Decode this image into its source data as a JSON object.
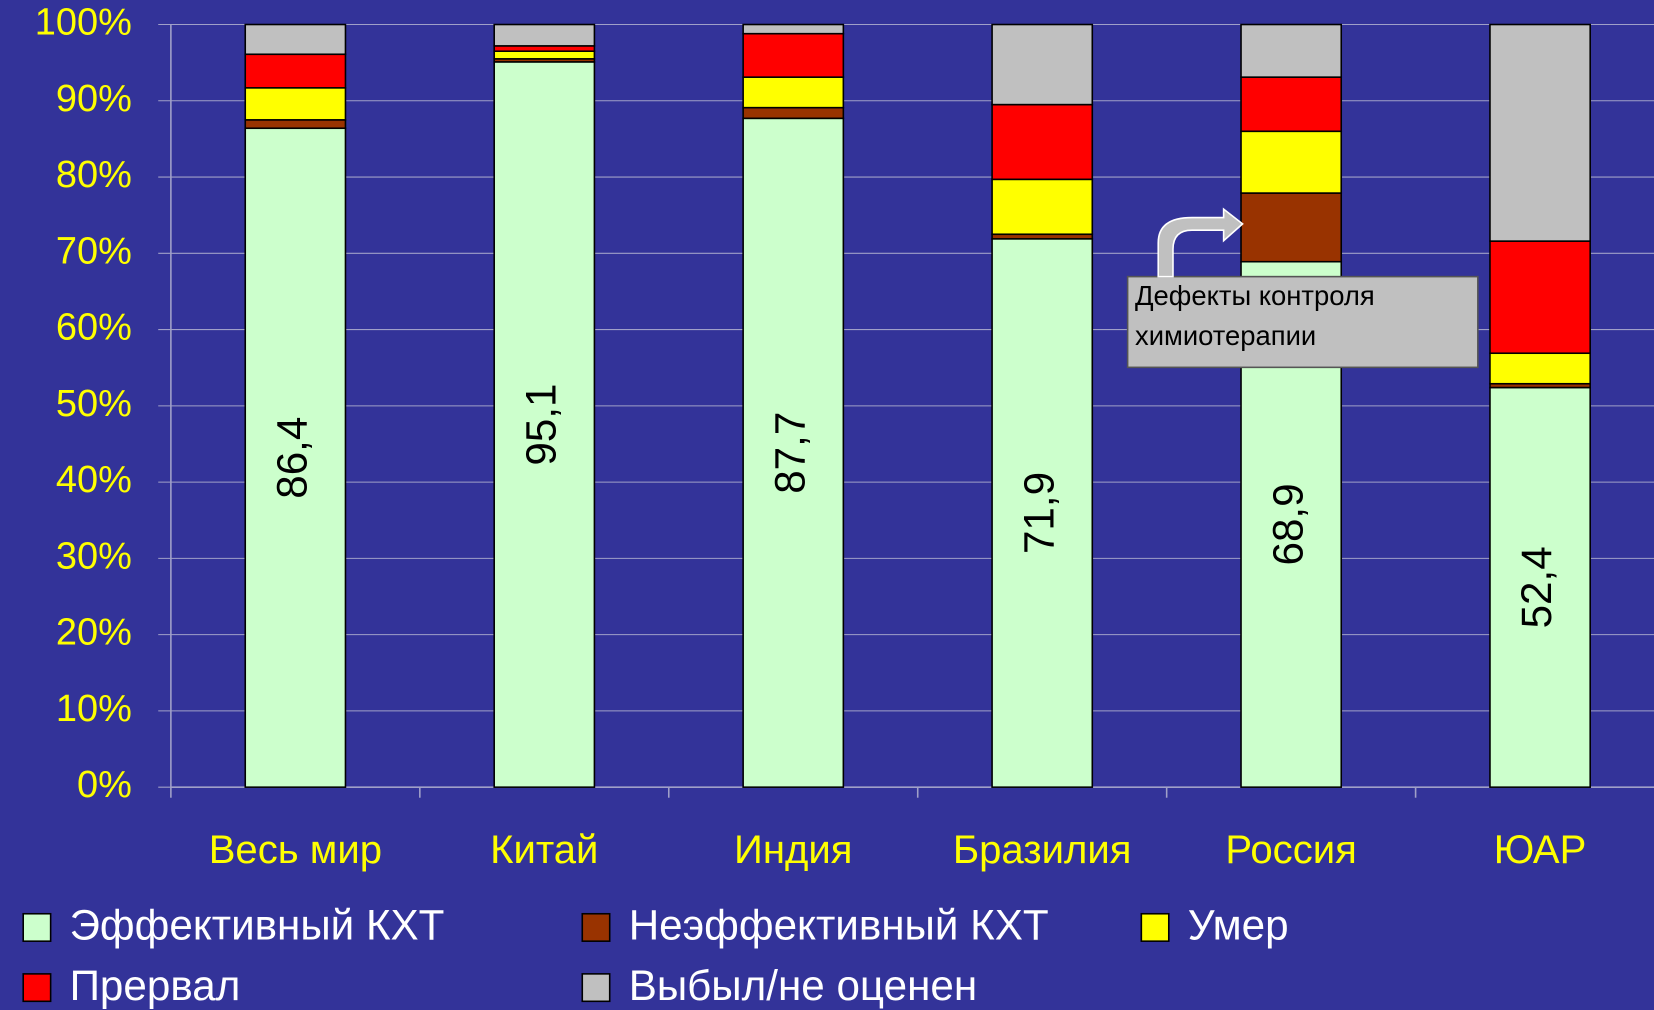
{
  "chart_data": {
    "type": "stacked_bar",
    "categories": [
      "Весь мир",
      "Китай",
      "Индия",
      "Бразилия",
      "Россия",
      "ЮАР"
    ],
    "series": [
      {
        "name": "Эффективный КХТ",
        "color": "#ccffcc",
        "values": [
          86.4,
          95.1,
          87.7,
          71.9,
          68.9,
          52.4
        ],
        "value_labels": [
          "86,4",
          "95,1",
          "87,7",
          "71,9",
          "68,9",
          "52,4"
        ]
      },
      {
        "name": "Неэффективный КХТ",
        "color": "#993300",
        "values": [
          1.1,
          0.4,
          1.4,
          0.6,
          9.0,
          0.5
        ]
      },
      {
        "name": "Умер",
        "color": "#ffff00",
        "values": [
          4.2,
          1.0,
          4.0,
          7.2,
          8.1,
          4.0
        ]
      },
      {
        "name": "Прервал",
        "color": "#ff0000",
        "values": [
          4.4,
          0.7,
          5.7,
          9.8,
          7.1,
          14.7
        ]
      },
      {
        "name": "Выбыл/не оценен",
        "color": "#c0c0c0",
        "values": [
          3.9,
          2.8,
          1.2,
          10.5,
          6.9,
          28.4
        ]
      }
    ],
    "ylim": [
      0,
      100
    ],
    "yticks": [
      {
        "value": 0,
        "label": "0%"
      },
      {
        "value": 10,
        "label": "10%"
      },
      {
        "value": 20,
        "label": "20%"
      },
      {
        "value": 30,
        "label": "30%"
      },
      {
        "value": 40,
        "label": "40%"
      },
      {
        "value": 50,
        "label": "50%"
      },
      {
        "value": 60,
        "label": "60%"
      },
      {
        "value": 70,
        "label": "70%"
      },
      {
        "value": 80,
        "label": "80%"
      },
      {
        "value": 90,
        "label": "90%"
      },
      {
        "value": 100,
        "label": "100%"
      }
    ],
    "grid": true,
    "legend": "bottom",
    "annotation": {
      "lines": [
        "Дефекты контроля",
        "химиотерапии"
      ]
    }
  }
}
